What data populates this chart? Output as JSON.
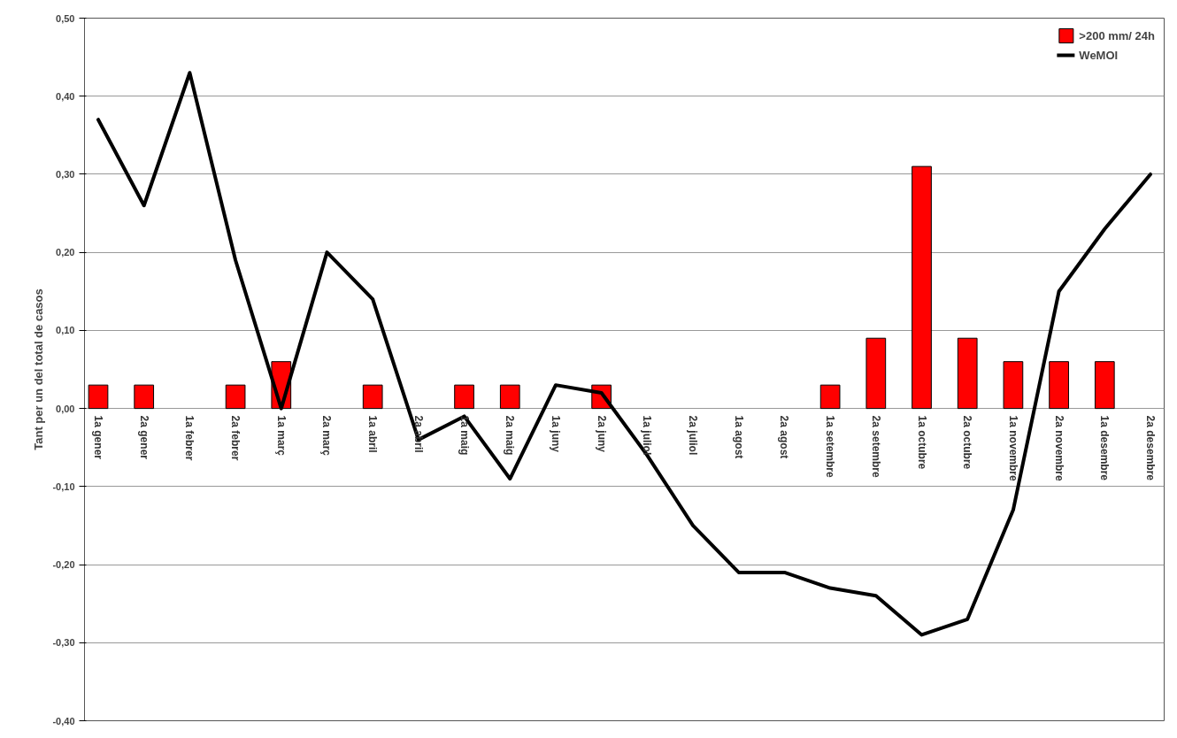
{
  "chart_data": {
    "type": "bar",
    "ylabel": "Tant per un del total de casos",
    "categories": [
      "1a gener",
      "2a gener",
      "1a febrer",
      "2a febrer",
      "1a març",
      "2a març",
      "1a abril",
      "2a abril",
      "1a maig",
      "2a maig",
      "1a juny",
      "2a juny",
      "1a juliol",
      "2a juliol",
      "1a agost",
      "2a agost",
      "1a setembre",
      "2a setembre",
      "1a octubre",
      "2a octubre",
      "1a novembre",
      "2a novembre",
      "1a desembre",
      "2a desembre"
    ],
    "series": [
      {
        "name": ">200 mm/ 24h",
        "color": "#ff0000",
        "values": [
          0.03,
          0.03,
          null,
          0.03,
          0.06,
          null,
          0.03,
          null,
          0.03,
          0.03,
          null,
          0.03,
          null,
          null,
          null,
          null,
          0.03,
          0.09,
          0.31,
          0.09,
          0.06,
          0.06,
          0.06,
          null
        ]
      },
      {
        "name": "WeMOI",
        "type": "line",
        "color": "#000000",
        "values": [
          0.37,
          0.26,
          0.43,
          0.19,
          0.0,
          0.2,
          0.14,
          -0.04,
          -0.01,
          -0.09,
          0.03,
          0.02,
          -0.06,
          -0.15,
          -0.21,
          -0.21,
          -0.23,
          -0.24,
          -0.29,
          -0.27,
          -0.13,
          0.15,
          0.23,
          0.3
        ]
      }
    ],
    "ylim": [
      -0.4,
      0.5
    ],
    "yticks": [
      {
        "value": -0.4,
        "label": "-0,40"
      },
      {
        "value": -0.3,
        "label": "-0,30"
      },
      {
        "value": -0.2,
        "label": "-0,20"
      },
      {
        "value": -0.1,
        "label": "-0,10"
      },
      {
        "value": 0.0,
        "label": "0,00"
      },
      {
        "value": 0.1,
        "label": "0,10"
      },
      {
        "value": 0.2,
        "label": "0,20"
      },
      {
        "value": 0.3,
        "label": "0,30"
      },
      {
        "value": 0.4,
        "label": "0,40"
      },
      {
        "value": 0.5,
        "label": "0,50"
      }
    ],
    "grid": "y",
    "legend": "top right"
  }
}
